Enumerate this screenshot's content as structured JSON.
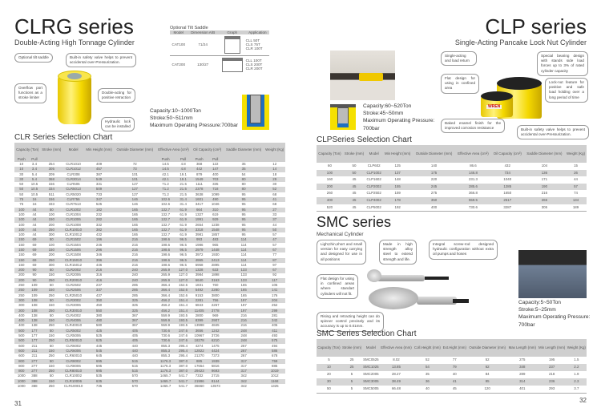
{
  "left": {
    "title": "CLRG series",
    "subtitle": "Double-Acting High Tonnage Cylinder",
    "callouts": [
      "Optional tilt saddle",
      "Built-in safety valve helps to prevent accidental over-Pressurization.",
      "Overflow port functions as a stroke limiter",
      "Double-acting for positive retraction",
      "Hydraulic lock can be installed"
    ],
    "tilt_saddle": {
      "title": "Optional Tilt Saddle",
      "headers": [
        "Model",
        "Dimension A/B",
        "Graph",
        "Application"
      ],
      "rows": [
        {
          "model": "CAT100",
          "dim": "71/24",
          "app": [
            "CLL 50T",
            "CLS 75T",
            "CLR 100T"
          ]
        },
        {
          "model": "CAT200",
          "dim": "130/27",
          "app": [
            "CLL 100T",
            "CLS 200T",
            "CLR 200T"
          ]
        }
      ]
    },
    "specs": [
      "Capacity:10~1000Ton",
      "Stroke:50~511mm",
      "Maximum Operating Pressure:700bar"
    ],
    "chart_title": "CLR Series Selection Chart",
    "headers": {
      "capacity": "Capacity (Ton)",
      "stroke": "Stroke (mm)",
      "model": "Model",
      "min_height": "Min Height (mm)",
      "od": "Outside Diameter (mm)",
      "area": "Effective Area (cm²)",
      "oil": "Oil Capacity (cm³)",
      "saddle": "Saddle Diameter (mm)",
      "weight": "Weight (Kg)",
      "push": "Push",
      "pull": "Pull"
    },
    "rows": [
      [
        "10",
        "3.4",
        "254",
        "CLR1010",
        "409",
        "72",
        "14.5",
        "4.8",
        "368",
        "122",
        "35",
        "12"
      ],
      [
        "10",
        "3.4",
        "305",
        "CLR1012",
        "457",
        "73",
        "14.5",
        "4.8",
        "442",
        "147",
        "35",
        "14"
      ],
      [
        "30",
        "5.4",
        "209",
        "CLR308",
        "387",
        "101",
        "42.1",
        "19.1",
        "879",
        "400",
        "54",
        "18"
      ],
      [
        "30",
        "5.4",
        "368",
        "CLR3014",
        "549",
        "101",
        "42.1",
        "19.1",
        "1549",
        "703",
        "80",
        "29"
      ],
      [
        "50",
        "10.5",
        "156",
        "CLR506",
        "331",
        "127",
        "71.2",
        "21.5",
        "1111",
        "335",
        "80",
        "30"
      ],
      [
        "50",
        "10.5",
        "334",
        "CLR5013",
        "509",
        "127",
        "71.2",
        "21.5",
        "2378",
        "718",
        "80",
        "52"
      ],
      [
        "50",
        "10.5",
        "511",
        "CLR5020",
        "733",
        "127",
        "71.2",
        "21.5",
        "3638",
        "1099",
        "95",
        "68"
      ],
      [
        "75",
        "16",
        "156",
        "CLR756",
        "347",
        "146",
        "102.6",
        "31.4",
        "1601",
        "490",
        "95",
        "41"
      ],
      [
        "75",
        "16",
        "333",
        "CLR7513",
        "525",
        "146",
        "102.6",
        "31.4",
        "3417",
        "1046",
        "95",
        "68"
      ],
      [
        "100",
        "44",
        "50",
        "CLR1002",
        "182",
        "165",
        "132.7",
        "61.9",
        "664",
        "310",
        "95",
        "27"
      ],
      [
        "100",
        "44",
        "100",
        "CLR1004",
        "232",
        "165",
        "132.7",
        "61.9",
        "1327",
        "619",
        "95",
        "33"
      ],
      [
        "100",
        "44",
        "150",
        "CLR1006",
        "282",
        "165",
        "132.7",
        "61.9",
        "1991",
        "929",
        "95",
        "37"
      ],
      [
        "100",
        "44",
        "200",
        "CLR1008",
        "332",
        "165",
        "132.7",
        "61.9",
        "2654",
        "1238",
        "95",
        "44"
      ],
      [
        "100",
        "44",
        "250",
        "CLR10010",
        "382",
        "165",
        "132.7",
        "61.9",
        "3318",
        "1548",
        "95",
        "50"
      ],
      [
        "100",
        "44",
        "300",
        "CLR10012",
        "432",
        "165",
        "132.7",
        "61.9",
        "3981",
        "1857",
        "95",
        "57"
      ],
      [
        "150",
        "69",
        "50",
        "CLR1502",
        "196",
        "216",
        "198.6",
        "96.5",
        "993",
        "483",
        "114",
        "47"
      ],
      [
        "150",
        "69",
        "100",
        "CLR1504",
        "246",
        "216",
        "198.6",
        "96.5",
        "1986",
        "965",
        "114",
        "57"
      ],
      [
        "150",
        "69",
        "150",
        "CLR1506",
        "296",
        "216",
        "198.6",
        "96.5",
        "2979",
        "1448",
        "114",
        "67"
      ],
      [
        "150",
        "69",
        "200",
        "CLR1508",
        "346",
        "216",
        "198.6",
        "96.5",
        "3972",
        "1930",
        "114",
        "77"
      ],
      [
        "150",
        "69",
        "250",
        "CLR15010",
        "396",
        "216",
        "198.6",
        "96.5",
        "4965",
        "2413",
        "114",
        "87"
      ],
      [
        "150",
        "69",
        "300",
        "CLR15012",
        "446",
        "216",
        "198.6",
        "96.5",
        "5958",
        "2895",
        "114",
        "97"
      ],
      [
        "200",
        "90",
        "50",
        "CLR2002",
        "216",
        "240",
        "265.9",
        "127.0",
        "1328",
        "633",
        "133",
        "67"
      ],
      [
        "200",
        "90",
        "150",
        "CLR2006",
        "316",
        "240",
        "265.9",
        "127.0",
        "3984",
        "1898",
        "133",
        "92"
      ],
      [
        "200",
        "90",
        "250",
        "CLR20010",
        "416",
        "240",
        "265.9",
        "127.0",
        "6640",
        "3163",
        "133",
        "117"
      ],
      [
        "250",
        "109",
        "50",
        "CLR2502",
        "237",
        "285",
        "366.4",
        "152.6",
        "1831",
        "760",
        "165",
        "105"
      ],
      [
        "250",
        "109",
        "150",
        "CLR2506",
        "337",
        "285",
        "366.4",
        "152.6",
        "5492",
        "2280",
        "165",
        "141"
      ],
      [
        "250",
        "109",
        "250",
        "CLR25010",
        "437",
        "285",
        "366.4",
        "152.6",
        "9153",
        "3800",
        "165",
        "176"
      ],
      [
        "300",
        "108",
        "50",
        "CLR3002",
        "350",
        "325",
        "456.2",
        "151.4",
        "2281",
        "756",
        "197",
        "204"
      ],
      [
        "300",
        "108",
        "150",
        "CLR3006",
        "450",
        "325",
        "456.2",
        "151.4",
        "6843",
        "2267",
        "197",
        "252"
      ],
      [
        "300",
        "108",
        "250",
        "CLR30010",
        "550",
        "325",
        "456.2",
        "151.4",
        "11405",
        "3778",
        "197",
        "299"
      ],
      [
        "400",
        "138",
        "50",
        "CLR4002",
        "380",
        "367",
        "559.9",
        "193.5",
        "2800",
        "969",
        "216",
        "281"
      ],
      [
        "400",
        "138",
        "150",
        "CLR4006",
        "480",
        "367",
        "559.9",
        "193.5",
        "8399",
        "2907",
        "216",
        "342"
      ],
      [
        "400",
        "138",
        "250",
        "CLR40010",
        "580",
        "367",
        "559.9",
        "193.5",
        "13998",
        "4845",
        "216",
        "405"
      ],
      [
        "500",
        "177",
        "50",
        "CLR5002",
        "425",
        "405",
        "730.6",
        "247.6",
        "3656",
        "1242",
        "248",
        "411"
      ],
      [
        "500",
        "177",
        "150",
        "CLR5006",
        "525",
        "405",
        "730.6",
        "247.6",
        "10967",
        "3726",
        "248",
        "493"
      ],
      [
        "500",
        "177",
        "250",
        "CLR50010",
        "625",
        "405",
        "730.6",
        "247.6",
        "18278",
        "6210",
        "248",
        "575"
      ],
      [
        "600",
        "211",
        "50",
        "CLR6002",
        "445",
        "440",
        "855.3",
        "295.4",
        "4274",
        "1475",
        "267",
        "494"
      ],
      [
        "600",
        "211",
        "150",
        "CLR6006",
        "545",
        "440",
        "855.3",
        "295.4",
        "12822",
        "4424",
        "267",
        "586"
      ],
      [
        "600",
        "211",
        "250",
        "CLR60010",
        "645",
        "440",
        "855.3",
        "295.4",
        "21370",
        "7373",
        "267",
        "678"
      ],
      [
        "800",
        "277",
        "50",
        "CLR8002",
        "695",
        "515",
        "1176.3",
        "387.0",
        "885",
        "1939",
        "317",
        "759"
      ],
      [
        "800",
        "277",
        "150",
        "CLR8006",
        "595",
        "515",
        "1176.3",
        "387.0",
        "17654",
        "5816",
        "317",
        "885"
      ],
      [
        "800",
        "277",
        "250",
        "CLR80010",
        "695",
        "515",
        "1176.3",
        "387.0",
        "29423",
        "9693",
        "317",
        "1019"
      ],
      [
        "1000",
        "388",
        "50",
        "CLR10002",
        "535",
        "570",
        "1465.7",
        "541.7",
        "7332",
        "2715",
        "342",
        "1012"
      ],
      [
        "1000",
        "388",
        "150",
        "CLR10006",
        "635",
        "570",
        "1465.7",
        "541.7",
        "21996",
        "8144",
        "342",
        "1168"
      ],
      [
        "1000",
        "388",
        "250",
        "CLR100010",
        "735",
        "570",
        "1465.7",
        "541.7",
        "36660",
        "13573",
        "342",
        "1325"
      ]
    ],
    "page_number": "31"
  },
  "right": {
    "clp": {
      "title": "CLP series",
      "subtitle": "Single-Acting Pancake Lock Nut Cylinder",
      "callouts": [
        "Single-acting and load return",
        "Special bearing design with stands side load forces up to 3% of rated cylinder capacity",
        "Flat design for using in confined area",
        "Lock-nut feature for positive and safe load holding over a long period of time",
        "Baked enamel finish for the improved corrosion resistance",
        "Built-in safety valve helps to prevent accidental over-Pressurization."
      ],
      "brand": "WREN",
      "specs": [
        "Capacity:60~520Ton",
        "Stroke:45~50mm",
        "Maximum Operating Pressure:",
        "700bar"
      ],
      "chart_title": "CLPSeries Selection Chart",
      "headers": [
        "Capacity (Ton)",
        "Stroke (mm)",
        "Model",
        "Min Height (mm)",
        "Outside Diameter (mm)",
        "Effective Area (cm²)",
        "Oil Capacity (cm³)",
        "Saddle Diameter (mm)",
        "Weight (Kg)"
      ],
      "rows": [
        [
          "60",
          "50",
          "CLP602",
          "125",
          "140",
          "86.6",
          "432",
          "104",
          "15"
        ],
        [
          "100",
          "50",
          "CLP1002",
          "137",
          "175",
          "146.8",
          "734",
          "136",
          "26"
        ],
        [
          "160",
          "45",
          "CLP1602",
          "148",
          "220",
          "231.3",
          "1040",
          "171",
          "44"
        ],
        [
          "200",
          "45",
          "CLP2002",
          "155",
          "245",
          "285.6",
          "1285",
          "190",
          "57"
        ],
        [
          "260",
          "45",
          "CLP2502",
          "159",
          "275",
          "366.8",
          "1650",
          "216",
          "74"
        ],
        [
          "400",
          "45",
          "CLP4002",
          "178",
          "350",
          "559.5",
          "2517",
          "266",
          "134"
        ],
        [
          "520",
          "45",
          "CLP5002",
          "192",
          "400",
          "730.6",
          "3287",
          "305",
          "189"
        ]
      ]
    },
    "smc": {
      "title": "SMC series",
      "subtitle": "Mechanical Cylinder",
      "callouts": [
        "Light,thin,short and small version for easy carrying and designed for use in all positions",
        "Made in high strength alloy steel to extend strength and life.",
        "Integral screw-rod designed hydraulic configuration without extra oil pumps and hoses",
        "Flat design for using in confined areas where standart cylinders will not fit.",
        "Rising and retracting height can do spinner control precisely and its accuracy is up to 0.01mm."
      ],
      "specs": [
        "Capacity:5~50Ton",
        "Stroke:5~25mm",
        "Maximum Operating Pressure:",
        "700bar"
      ],
      "chart_title": "SMC Series Selection Chart",
      "headers": [
        "Capacity (Ton)",
        "Stroke (mm)",
        "Model",
        "Effective Area (mm)",
        "Coll.Height (mm)",
        "Ext.Hight (mm)",
        "Outside Diameter (mm)",
        "Max Length (mm)",
        "Min Length (mm)",
        "Weight (Kg)"
      ],
      "rows": [
        [
          "5",
          "25",
          "SMC0525",
          "8.02",
          "52",
          "77",
          "52",
          "275",
          "195",
          "1.5"
        ],
        [
          "10",
          "25",
          "SMC1025",
          "13.85",
          "54",
          "79",
          "62",
          "348",
          "237",
          "2.2"
        ],
        [
          "20",
          "5",
          "SMC2005",
          "28.27",
          "35",
          "40",
          "84",
          "289",
          "218",
          "1.9"
        ],
        [
          "30",
          "5",
          "SMC3005",
          "38.49",
          "36",
          "41",
          "95",
          "314",
          "236",
          "2.3"
        ],
        [
          "50",
          "5",
          "SMC5005",
          "66.48",
          "40",
          "45",
          "120",
          "401",
          "293",
          "3.7"
        ]
      ]
    },
    "page_number": "32"
  },
  "colors": {
    "table_header": "#cfcfcf",
    "stripe": "#d6d6d6",
    "cylinder_yellow": "#f4d800"
  }
}
